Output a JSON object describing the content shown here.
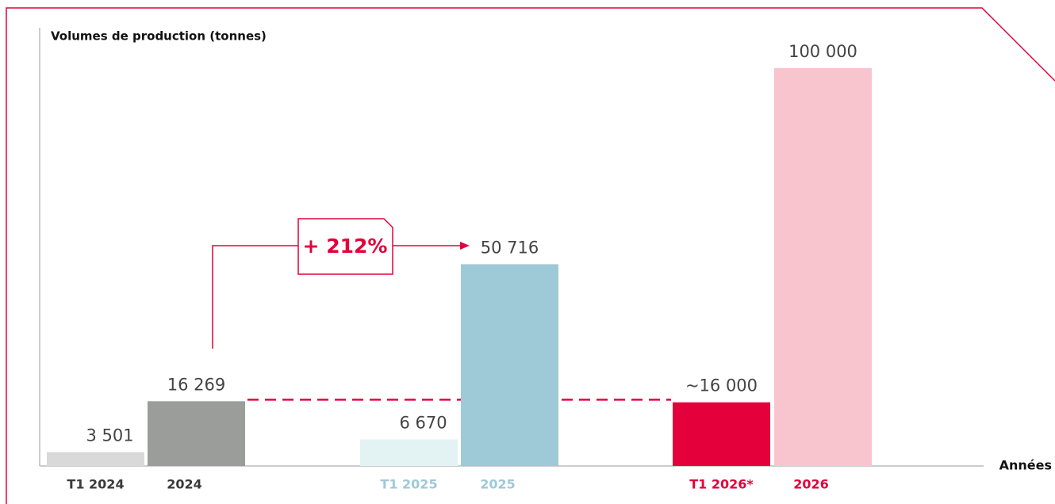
{
  "chart_data": {
    "type": "bar",
    "y_axis_title": "Volumes de production (tonnes)",
    "x_axis_title": "Années",
    "categories": [
      "T1 2024",
      "2024",
      "T1 2025",
      "2025",
      "T1 2026*",
      "2026"
    ],
    "values": [
      3501,
      16269,
      6670,
      50716,
      16000,
      100000
    ],
    "value_labels": [
      "3 501",
      "16 269",
      "6 670",
      "50 716",
      "~16 000",
      "100 000"
    ],
    "colors": [
      "#d9d9d9",
      "#9a9d9a",
      "#e3f2f3",
      "#9ec9d7",
      "#e4003a",
      "#f8c5cf"
    ],
    "label_colors": [
      "#3a3a3a",
      "#3a3a3a",
      "#9ec9d7",
      "#9ec9d7",
      "#e4003a",
      "#e4003a"
    ],
    "ylim": [
      0,
      100000
    ],
    "annotation": "+ 212%"
  }
}
